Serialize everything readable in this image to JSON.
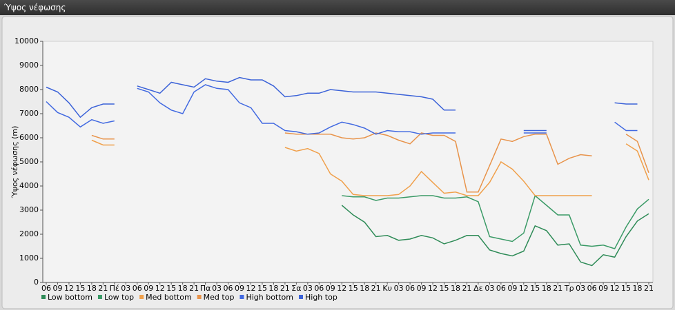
{
  "window": {
    "title": "Ύψος νέφωσης"
  },
  "chart_data": {
    "type": "line",
    "y_label": "Ύψος νέφωσης (m)",
    "categories": [
      "06",
      "09",
      "12",
      "15",
      "18",
      "21",
      "Πέ",
      "03",
      "06",
      "09",
      "12",
      "15",
      "18",
      "21",
      "Πα",
      "03",
      "06",
      "09",
      "12",
      "15",
      "18",
      "21",
      "Σα",
      "03",
      "06",
      "09",
      "12",
      "15",
      "18",
      "21",
      "Κυ",
      "03",
      "06",
      "09",
      "12",
      "15",
      "18",
      "21",
      "Δε",
      "03",
      "06",
      "09",
      "12",
      "15",
      "18",
      "21",
      "Τρ",
      "03",
      "06",
      "09",
      "12",
      "15",
      "18",
      "21"
    ],
    "ylim": [
      0,
      10000
    ],
    "yticks": [
      0,
      1000,
      2000,
      3000,
      4000,
      5000,
      6000,
      7000,
      8000,
      9000,
      10000
    ],
    "grid": false,
    "series": [
      {
        "name": "Low bottom",
        "color": "#2e8b57",
        "values": [
          null,
          null,
          null,
          null,
          null,
          null,
          null,
          null,
          null,
          null,
          null,
          null,
          null,
          null,
          null,
          null,
          null,
          null,
          null,
          null,
          null,
          null,
          null,
          null,
          null,
          null,
          3200,
          2800,
          2500,
          1900,
          1950,
          1750,
          1800,
          1950,
          1850,
          1600,
          1750,
          1950,
          1950,
          1350,
          1200,
          1100,
          1300,
          2350,
          2150,
          1550,
          1600,
          850,
          700,
          1150,
          1050,
          1900,
          2550,
          2850
        ]
      },
      {
        "name": "Low top",
        "color": "#3a9a66",
        "values": [
          null,
          null,
          null,
          null,
          null,
          null,
          null,
          null,
          null,
          null,
          null,
          null,
          null,
          null,
          null,
          null,
          null,
          null,
          null,
          null,
          null,
          null,
          null,
          null,
          null,
          null,
          3600,
          3550,
          3550,
          3400,
          3500,
          3500,
          3550,
          3600,
          3600,
          3500,
          3500,
          3550,
          3350,
          1900,
          1800,
          1700,
          2050,
          3600,
          3200,
          2800,
          2800,
          1550,
          1500,
          1550,
          1400,
          2300,
          3050,
          3450
        ]
      },
      {
        "name": "Med bottom",
        "color": "#f0a04b",
        "values": [
          null,
          null,
          null,
          null,
          5900,
          5700,
          5700,
          null,
          null,
          null,
          null,
          null,
          null,
          null,
          null,
          null,
          null,
          null,
          null,
          null,
          null,
          5600,
          5450,
          5550,
          5350,
          4500,
          4200,
          3650,
          3600,
          3600,
          3600,
          3650,
          4000,
          4600,
          4150,
          3700,
          3750,
          3600,
          3600,
          4150,
          5000,
          4700,
          4200,
          3600,
          3600,
          3600,
          3600,
          3600,
          3600,
          null,
          null,
          5750,
          5450,
          4250
        ]
      },
      {
        "name": "Med top",
        "color": "#e8934a",
        "values": [
          null,
          null,
          null,
          null,
          6100,
          5950,
          5950,
          null,
          null,
          null,
          null,
          null,
          null,
          null,
          null,
          null,
          null,
          null,
          null,
          null,
          null,
          6200,
          6150,
          6150,
          6150,
          6150,
          6000,
          5950,
          6000,
          6200,
          6100,
          5900,
          5750,
          6200,
          6100,
          6100,
          5850,
          3750,
          3750,
          4850,
          5950,
          5850,
          6050,
          6150,
          6150,
          4900,
          5150,
          5300,
          5250,
          null,
          null,
          6150,
          5850,
          4550
        ]
      },
      {
        "name": "High bottom",
        "color": "#4169e1",
        "values": [
          7500,
          7050,
          6850,
          6450,
          6750,
          6600,
          6700,
          null,
          8050,
          7900,
          7450,
          7150,
          7000,
          7900,
          8200,
          8050,
          8000,
          7450,
          7250,
          6600,
          6600,
          6300,
          6250,
          6150,
          6200,
          6450,
          6650,
          6550,
          6400,
          6150,
          6300,
          6250,
          6250,
          6150,
          6200,
          6200,
          6200,
          null,
          null,
          null,
          null,
          null,
          6200,
          6200,
          6200,
          null,
          null,
          null,
          null,
          null,
          6650,
          6300,
          6300,
          null
        ]
      },
      {
        "name": "High top",
        "color": "#3b62d8",
        "values": [
          8100,
          7900,
          7450,
          6850,
          7250,
          7400,
          7400,
          null,
          8150,
          8000,
          7850,
          8300,
          8200,
          8100,
          8450,
          8350,
          8300,
          8500,
          8400,
          8400,
          8150,
          7700,
          7750,
          7850,
          7850,
          8000,
          7950,
          7900,
          7900,
          7900,
          7850,
          7800,
          7750,
          7700,
          7600,
          7150,
          7150,
          null,
          null,
          null,
          null,
          null,
          6300,
          6300,
          6300,
          null,
          null,
          null,
          null,
          null,
          7450,
          7400,
          7400,
          null
        ]
      }
    ]
  }
}
